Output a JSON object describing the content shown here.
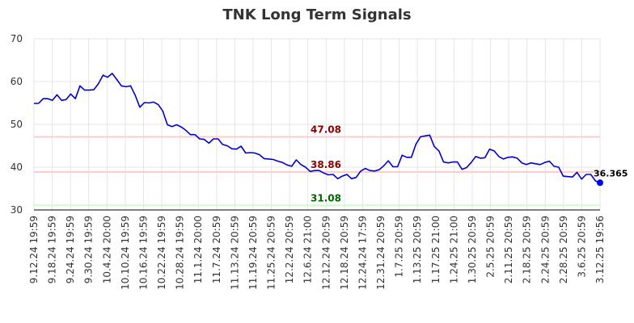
{
  "chart_data": {
    "type": "line",
    "title": "TNK Long Term Signals",
    "xlabel": "",
    "ylabel": "",
    "ylim": [
      30,
      70
    ],
    "yticks": [
      30,
      40,
      50,
      60,
      70
    ],
    "grid": true,
    "x_tick_labels": [
      "9.12.24 19:59",
      "9.18.24 19:59",
      "9.24.24 19:59",
      "9.30.24 19:59",
      "10.4.24 20:00",
      "10.10.24 19:59",
      "10.16.24 19:59",
      "10.22.24 19:59",
      "10.28.24 19:59",
      "11.1.24 20:00",
      "11.7.24 20:59",
      "11.13.24 20:59",
      "11.19.24 20:59",
      "11.25.24 20:59",
      "12.2.24 20:59",
      "12.6.24 21:00",
      "12.12.24 20:59",
      "12.18.24 20:59",
      "12.24.24 17:59",
      "12.31.24 20:59",
      "1.7.25 20:59",
      "1.13.25 20:59",
      "1.17.25 21:00",
      "1.24.25 21:00",
      "1.30.25 20:59",
      "2.5.25 20:59",
      "2.11.25 20:59",
      "2.18.25 20:59",
      "2.24.25 20:59",
      "2.28.25 20:59",
      "3.6.25 20:59",
      "3.12.25 19:56"
    ],
    "series": [
      {
        "color": "#0000cc",
        "values": [
          54.9,
          54.9,
          56.0,
          56.0,
          55.6,
          56.9,
          55.6,
          55.8,
          57.1,
          56.0,
          59.0,
          58.0,
          58.0,
          58.1,
          59.5,
          61.5,
          61.0,
          61.9,
          60.5,
          59.0,
          58.8,
          59.0,
          56.8,
          54.0,
          55.1,
          55.0,
          55.2,
          54.6,
          53.1,
          49.9,
          49.5,
          49.9,
          49.4,
          48.6,
          47.6,
          47.6,
          46.6,
          46.5,
          45.6,
          46.6,
          46.6,
          45.3,
          45.0,
          44.3,
          44.2,
          44.9,
          43.3,
          43.4,
          43.3,
          42.9,
          42.0,
          41.9,
          41.8,
          41.4,
          41.1,
          40.5,
          40.2,
          41.7,
          40.6,
          40.0,
          39.0,
          39.2,
          39.2,
          38.6,
          38.2,
          38.3,
          37.3,
          37.9,
          38.3,
          37.3,
          37.6,
          39.1,
          39.7,
          39.2,
          39.1,
          39.4,
          40.3,
          41.5,
          40.1,
          40.1,
          42.8,
          42.3,
          42.3,
          45.4,
          47.1,
          47.3,
          47.5,
          44.8,
          43.8,
          41.2,
          41.0,
          41.2,
          41.2,
          39.5,
          39.9,
          41.1,
          42.5,
          42.1,
          42.2,
          44.2,
          43.8,
          42.5,
          41.9,
          42.3,
          42.4,
          42.1,
          41.0,
          40.6,
          41.0,
          40.8,
          40.6,
          41.1,
          41.4,
          40.2,
          40.0,
          37.9,
          37.8,
          37.7,
          38.8,
          37.2,
          38.3,
          38.3,
          36.8,
          36.365
        ]
      }
    ],
    "reference_lines": [
      {
        "value": 47.08,
        "label": "47.08",
        "line_color": "#ffcccc",
        "label_color": "#8b0000"
      },
      {
        "value": 38.86,
        "label": "38.86",
        "line_color": "#ffcccc",
        "label_color": "#8b0000"
      },
      {
        "value": 31.08,
        "label": "31.08",
        "line_color": "#ccffcc",
        "label_color": "#006400"
      }
    ],
    "last_value_label": "36.365",
    "last_point_color": "#0000ff"
  }
}
